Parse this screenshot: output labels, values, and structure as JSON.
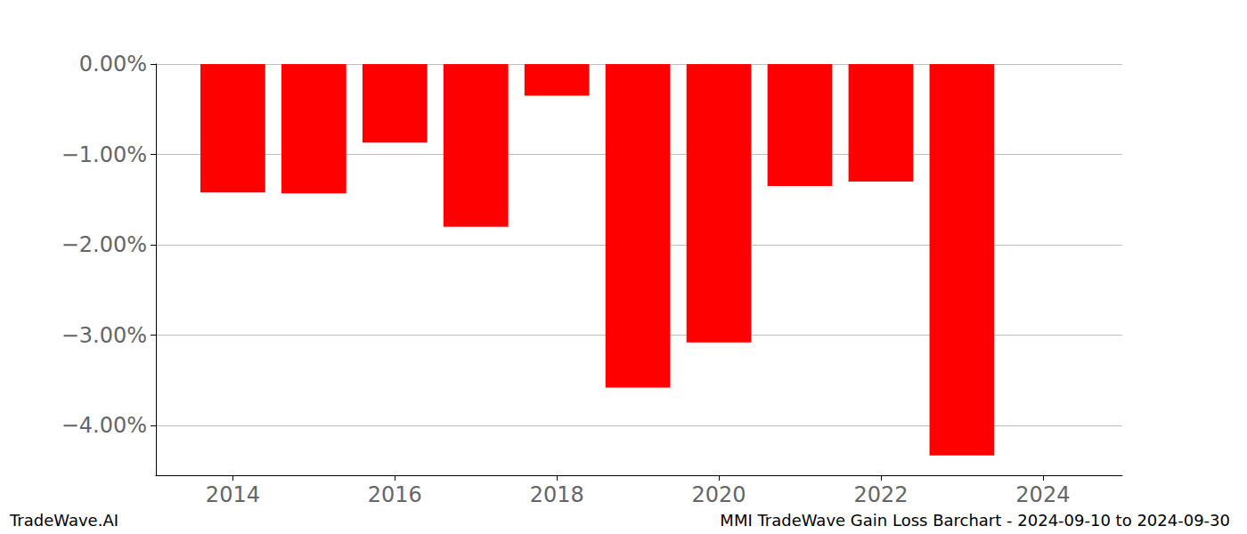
{
  "chart_data": {
    "type": "bar",
    "title": "MMI TradeWave Gain Loss Barchart - 2024-09-10 to 2024-09-30",
    "annotations": [
      "TradeWave.AI"
    ],
    "x": [
      2014,
      2015,
      2016,
      2017,
      2018,
      2019,
      2020,
      2021,
      2022,
      2023
    ],
    "values": [
      -1.42,
      -1.43,
      -0.87,
      -1.8,
      -0.35,
      -3.58,
      -3.08,
      -1.35,
      -1.3,
      -4.33
    ],
    "color": "#ff0000",
    "xlim": [
      2013.05,
      2024.98
    ],
    "xticks": [
      2014,
      2016,
      2018,
      2020,
      2022,
      2024
    ],
    "ylim": [
      -4.55,
      0
    ],
    "yticks": [
      {
        "value": 0,
        "label": "0.00%"
      },
      {
        "value": -1,
        "label": "−1.00%"
      },
      {
        "value": -2,
        "label": "−2.00%"
      },
      {
        "value": -3,
        "label": "−3.00%"
      },
      {
        "value": -4,
        "label": "−4.00%"
      }
    ],
    "grid": true
  }
}
